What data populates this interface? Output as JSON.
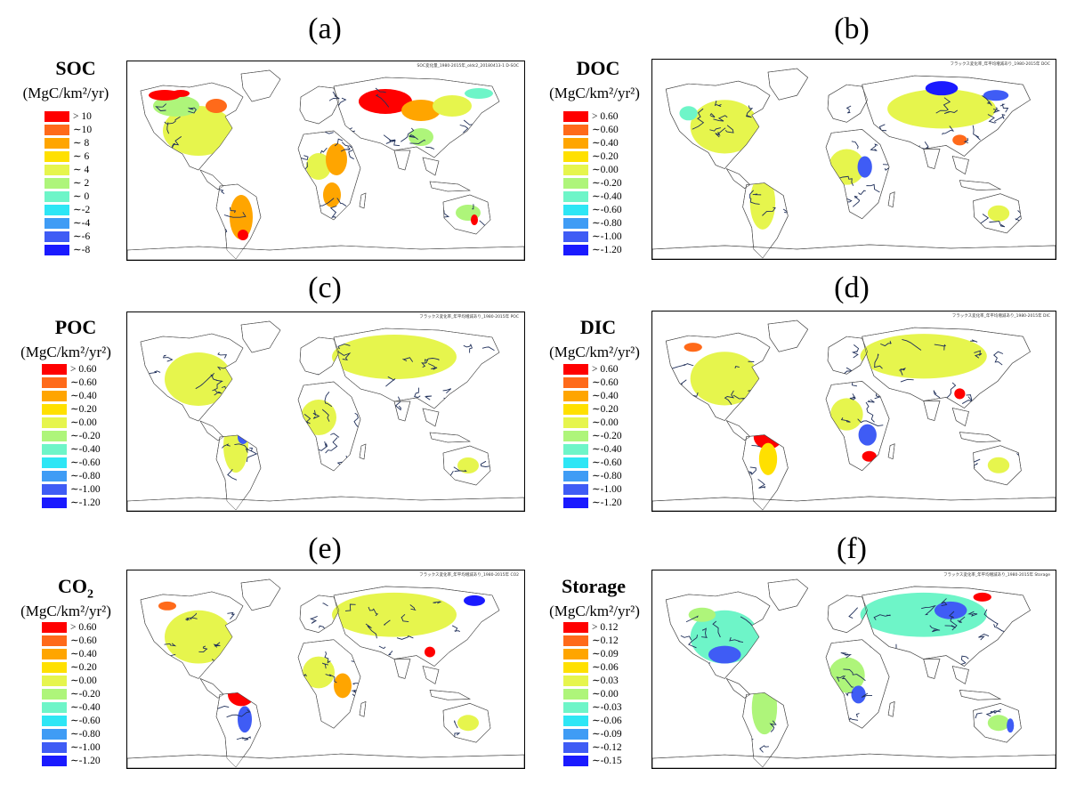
{
  "panels": [
    {
      "label": "(a)",
      "title": "SOC",
      "title_sub": "",
      "unit": "(MgC/km²/yr)",
      "map_header": "SOC変化量_1980-2015年_oldc2_20180413-1   D-SOC",
      "legend": [
        {
          "label": "> 10",
          "color": "#ff0000"
        },
        {
          "label": "∼10",
          "color": "#ff6a1a"
        },
        {
          "label": "∼ 8",
          "color": "#ffa500"
        },
        {
          "label": "∼ 6",
          "color": "#ffe000"
        },
        {
          "label": "∼ 4",
          "color": "#e6f54d"
        },
        {
          "label": "∼ 2",
          "color": "#aef57a"
        },
        {
          "label": "∼ 0",
          "color": "#6ef5c8"
        },
        {
          "label": "∼-2",
          "color": "#2ee6f5"
        },
        {
          "label": "∼-4",
          "color": "#3f9cf5"
        },
        {
          "label": "∼-6",
          "color": "#3f5cf5"
        },
        {
          "label": "∼-8",
          "color": "#1a1aff"
        }
      ]
    },
    {
      "label": "(b)",
      "title": "DOC",
      "title_sub": "",
      "unit": "(MgC/km²/yr²)",
      "map_header": "フラックス変化率_年平均増減あり_1980-2015年   DOC",
      "legend": [
        {
          "label": "> 0.60",
          "color": "#ff0000"
        },
        {
          "label": "∼0.60",
          "color": "#ff6a1a"
        },
        {
          "label": "∼0.40",
          "color": "#ffa500"
        },
        {
          "label": "∼0.20",
          "color": "#ffe000"
        },
        {
          "label": "∼0.00",
          "color": "#e6f54d"
        },
        {
          "label": "∼-0.20",
          "color": "#aef57a"
        },
        {
          "label": "∼-0.40",
          "color": "#6ef5c8"
        },
        {
          "label": "∼-0.60",
          "color": "#2ee6f5"
        },
        {
          "label": "∼-0.80",
          "color": "#3f9cf5"
        },
        {
          "label": "∼-1.00",
          "color": "#3f5cf5"
        },
        {
          "label": "∼-1.20",
          "color": "#1a1aff"
        }
      ]
    },
    {
      "label": "(c)",
      "title": "POC",
      "title_sub": "",
      "unit": "(MgC/km²/yr²)",
      "map_header": "フラックス変化率_年平均増減あり_1980-2015年   POC",
      "legend": [
        {
          "label": "> 0.60",
          "color": "#ff0000"
        },
        {
          "label": "∼0.60",
          "color": "#ff6a1a"
        },
        {
          "label": "∼0.40",
          "color": "#ffa500"
        },
        {
          "label": "∼0.20",
          "color": "#ffe000"
        },
        {
          "label": "∼0.00",
          "color": "#e6f54d"
        },
        {
          "label": "∼-0.20",
          "color": "#aef57a"
        },
        {
          "label": "∼-0.40",
          "color": "#6ef5c8"
        },
        {
          "label": "∼-0.60",
          "color": "#2ee6f5"
        },
        {
          "label": "∼-0.80",
          "color": "#3f9cf5"
        },
        {
          "label": "∼-1.00",
          "color": "#3f5cf5"
        },
        {
          "label": "∼-1.20",
          "color": "#1a1aff"
        }
      ]
    },
    {
      "label": "(d)",
      "title": "DIC",
      "title_sub": "",
      "unit": "(MgC/km²/yr²)",
      "map_header": "フラックス変化率_年平均増減あり_1980-2015年   DIC",
      "legend": [
        {
          "label": "> 0.60",
          "color": "#ff0000"
        },
        {
          "label": "∼0.60",
          "color": "#ff6a1a"
        },
        {
          "label": "∼0.40",
          "color": "#ffa500"
        },
        {
          "label": "∼0.20",
          "color": "#ffe000"
        },
        {
          "label": "∼0.00",
          "color": "#e6f54d"
        },
        {
          "label": "∼-0.20",
          "color": "#aef57a"
        },
        {
          "label": "∼-0.40",
          "color": "#6ef5c8"
        },
        {
          "label": "∼-0.60",
          "color": "#2ee6f5"
        },
        {
          "label": "∼-0.80",
          "color": "#3f9cf5"
        },
        {
          "label": "∼-1.00",
          "color": "#3f5cf5"
        },
        {
          "label": "∼-1.20",
          "color": "#1a1aff"
        }
      ]
    },
    {
      "label": "(e)",
      "title": "CO",
      "title_sub": "2",
      "unit": "(MgC/km²/yr²)",
      "map_header": "フラックス変化率_年平均増減あり_1980-2015年   CO2",
      "legend": [
        {
          "label": "> 0.60",
          "color": "#ff0000"
        },
        {
          "label": "∼0.60",
          "color": "#ff6a1a"
        },
        {
          "label": "∼0.40",
          "color": "#ffa500"
        },
        {
          "label": "∼0.20",
          "color": "#ffe000"
        },
        {
          "label": "∼0.00",
          "color": "#e6f54d"
        },
        {
          "label": "∼-0.20",
          "color": "#aef57a"
        },
        {
          "label": "∼-0.40",
          "color": "#6ef5c8"
        },
        {
          "label": "∼-0.60",
          "color": "#2ee6f5"
        },
        {
          "label": "∼-0.80",
          "color": "#3f9cf5"
        },
        {
          "label": "∼-1.00",
          "color": "#3f5cf5"
        },
        {
          "label": "∼-1.20",
          "color": "#1a1aff"
        }
      ]
    },
    {
      "label": "(f)",
      "title": "Storage",
      "title_sub": "",
      "unit": "(MgC/km²/yr²)",
      "map_header": "フラックス変化率_年平均増減あり_1980-2015年   Storage",
      "legend": [
        {
          "label": "> 0.12",
          "color": "#ff0000"
        },
        {
          "label": "∼0.12",
          "color": "#ff6a1a"
        },
        {
          "label": "∼0.09",
          "color": "#ffa500"
        },
        {
          "label": "∼0.06",
          "color": "#ffe000"
        },
        {
          "label": "∼0.03",
          "color": "#e6f54d"
        },
        {
          "label": "∼0.00",
          "color": "#aef57a"
        },
        {
          "label": "∼-0.03",
          "color": "#6ef5c8"
        },
        {
          "label": "∼-0.06",
          "color": "#2ee6f5"
        },
        {
          "label": "∼-0.09",
          "color": "#3f9cf5"
        },
        {
          "label": "∼-0.12",
          "color": "#3f5cf5"
        },
        {
          "label": "∼-0.15",
          "color": "#1a1aff"
        }
      ]
    }
  ]
}
